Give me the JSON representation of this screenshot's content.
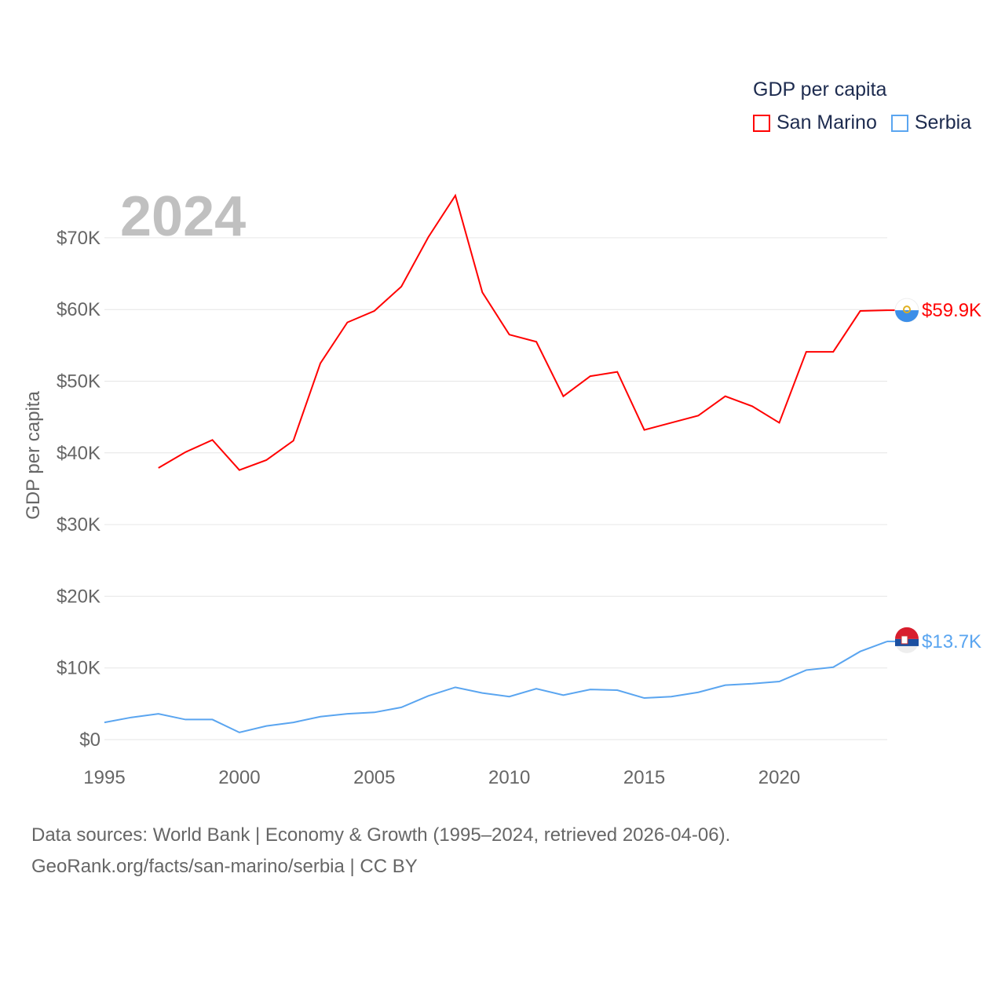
{
  "legend": {
    "title": "GDP per capita",
    "items": [
      {
        "label": "San Marino",
        "color": "#ff0000"
      },
      {
        "label": "Serbia",
        "color": "#5aa5f0"
      }
    ]
  },
  "year_label": "2024",
  "footer": {
    "line1": "Data sources: World Bank | Economy & Growth (1995–2024, retrieved 2026-04-06).",
    "line2": "GeoRank.org/facts/san-marino/serbia | CC BY"
  },
  "chart_data": {
    "type": "line",
    "title": "GDP per capita",
    "xlabel": "",
    "ylabel": "GDP per capita",
    "xlim": [
      1995,
      2024
    ],
    "ylim": [
      0,
      75.9
    ],
    "x_ticks": [
      1995,
      2000,
      2005,
      2010,
      2015,
      2020
    ],
    "y_ticks": [
      {
        "v": 0,
        "label": "$0"
      },
      {
        "v": 10,
        "label": "$10K"
      },
      {
        "v": 20,
        "label": "$20K"
      },
      {
        "v": 30,
        "label": "$30K"
      },
      {
        "v": 40,
        "label": "$40K"
      },
      {
        "v": 50,
        "label": "$50K"
      },
      {
        "v": 60,
        "label": "$60K"
      },
      {
        "v": 70,
        "label": "$70K"
      }
    ],
    "grid": true,
    "series": [
      {
        "name": "San Marino",
        "color": "#ff0000",
        "end_label": "$59.9K",
        "x": [
          1997,
          1998,
          1999,
          2000,
          2001,
          2002,
          2003,
          2004,
          2005,
          2006,
          2007,
          2008,
          2009,
          2010,
          2011,
          2012,
          2013,
          2014,
          2015,
          2016,
          2017,
          2018,
          2019,
          2020,
          2021,
          2022,
          2023,
          2024
        ],
        "values": [
          37.9,
          40.1,
          41.8,
          37.6,
          39.0,
          41.7,
          52.5,
          58.2,
          59.8,
          63.2,
          70.1,
          75.9,
          62.4,
          56.5,
          55.5,
          47.9,
          50.7,
          51.3,
          43.2,
          44.2,
          45.2,
          47.9,
          46.5,
          44.2,
          54.1,
          54.1,
          59.8,
          59.9
        ]
      },
      {
        "name": "Serbia",
        "color": "#5aa5f0",
        "end_label": "$13.7K",
        "x": [
          1995,
          1996,
          1997,
          1998,
          1999,
          2000,
          2001,
          2002,
          2003,
          2004,
          2005,
          2006,
          2007,
          2008,
          2009,
          2010,
          2011,
          2012,
          2013,
          2014,
          2015,
          2016,
          2017,
          2018,
          2019,
          2020,
          2021,
          2022,
          2023,
          2024
        ],
        "values": [
          2.4,
          3.1,
          3.6,
          2.8,
          2.8,
          1.0,
          1.9,
          2.4,
          3.2,
          3.6,
          3.8,
          4.5,
          6.1,
          7.3,
          6.5,
          6.0,
          7.1,
          6.2,
          7.0,
          6.9,
          5.8,
          6.0,
          6.6,
          7.6,
          7.8,
          8.1,
          9.7,
          10.1,
          12.3,
          13.7
        ]
      }
    ]
  }
}
